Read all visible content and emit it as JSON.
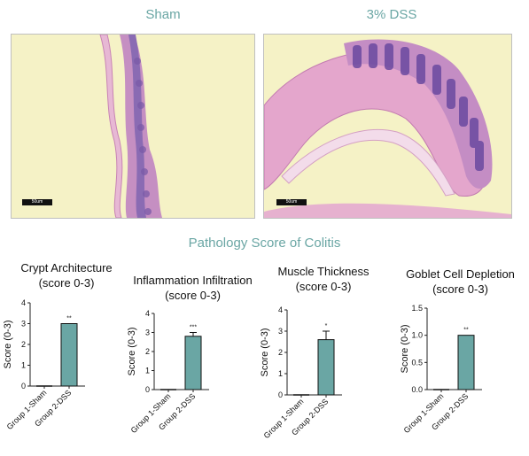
{
  "images": {
    "left_title": "Sham",
    "right_title": "3% DSS",
    "left_scalebar": "50um",
    "right_scalebar": "50um"
  },
  "section_title": "Pathology Score of Colitis",
  "colors": {
    "bar": "#6aa6a4",
    "title_accent": "#6aa6a4",
    "tissue": "#b86aa8",
    "background": "#f5f2c6"
  },
  "chart_data": [
    {
      "type": "bar",
      "title_lines": [
        "Crypt Architecture",
        "(score 0-3)"
      ],
      "ylabel": "Score (0-3)",
      "categories": [
        "Group 1-Sham",
        "Group 2-DSS"
      ],
      "values": [
        0,
        3
      ],
      "error": [
        0,
        0
      ],
      "significance": "**",
      "ylim": [
        0,
        4
      ],
      "yticks": [
        "0",
        "1",
        "2",
        "3",
        "4"
      ]
    },
    {
      "type": "bar",
      "title_lines": [
        "Inflammation Infiltration",
        "(score 0-3)"
      ],
      "ylabel": "Score (0-3)",
      "categories": [
        "Group 1-Sham",
        "Group 2-DSS"
      ],
      "values": [
        0,
        2.8
      ],
      "error": [
        0,
        0.2
      ],
      "significance": "***",
      "ylim": [
        0,
        4
      ],
      "yticks": [
        "0",
        "1",
        "2",
        "3",
        "4"
      ]
    },
    {
      "type": "bar",
      "title_lines": [
        "Muscle Thickness",
        "(score 0-3)"
      ],
      "ylabel": "Score (0-3)",
      "categories": [
        "Group 1-Sham",
        "Group 2-DSS"
      ],
      "values": [
        0,
        2.6
      ],
      "error": [
        0,
        0.4
      ],
      "significance": "*",
      "ylim": [
        0,
        4
      ],
      "yticks": [
        "0",
        "1",
        "2",
        "3",
        "4"
      ]
    },
    {
      "type": "bar",
      "title_lines": [
        "Goblet Cell Depletion",
        "(score 0-3)"
      ],
      "ylabel": "Score (0-3)",
      "categories": [
        "Group 1-Sham",
        "Group 2-DSS"
      ],
      "values": [
        0,
        1.0
      ],
      "error": [
        0,
        0
      ],
      "significance": "**",
      "ylim": [
        0,
        1.5
      ],
      "yticks": [
        "0.0",
        "0.5",
        "1.0",
        "1.5"
      ]
    }
  ]
}
